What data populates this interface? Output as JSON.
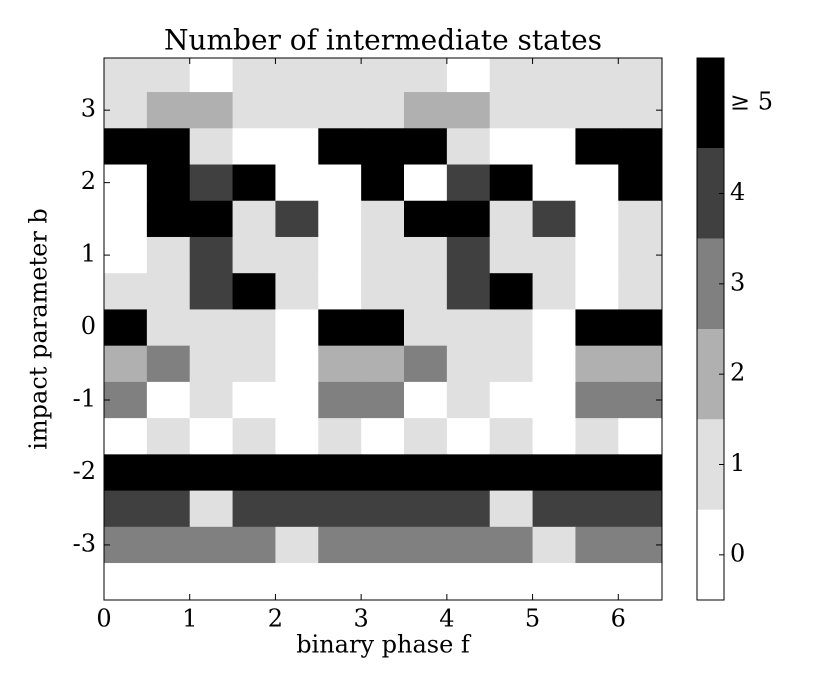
{
  "chart_data": {
    "type": "heatmap",
    "title": "Number of intermediate states",
    "xlabel": "binary phase f",
    "ylabel": "impact parameter b",
    "xlim": [
      0,
      6.51
    ],
    "xticks": [
      0,
      1,
      2,
      3,
      4,
      5,
      6
    ],
    "ylim": [
      -3.76,
      3.72
    ],
    "yticks": [
      -3,
      -2,
      -1,
      0,
      1,
      2,
      3
    ],
    "x": [
      0.25,
      0.75,
      1.25,
      1.75,
      2.25,
      2.75,
      3.25,
      3.75,
      4.25,
      4.75,
      5.25,
      5.75,
      6.25
    ],
    "y": [
      3.5,
      3.0,
      2.5,
      2.0,
      1.5,
      1.0,
      0.5,
      0.0,
      -0.5,
      -1.0,
      -1.5,
      -2.0,
      -2.5,
      -3.0,
      -3.5
    ],
    "z": [
      [
        1,
        1,
        0,
        1,
        1,
        1,
        1,
        1,
        0,
        1,
        1,
        1,
        1
      ],
      [
        1,
        2,
        2,
        1,
        1,
        1,
        1,
        2,
        2,
        1,
        1,
        1,
        1
      ],
      [
        5,
        5,
        1,
        0,
        0,
        5,
        5,
        5,
        1,
        0,
        0,
        5,
        5
      ],
      [
        0,
        5,
        4,
        5,
        0,
        0,
        5,
        0,
        4,
        5,
        0,
        0,
        5
      ],
      [
        0,
        5,
        5,
        1,
        4,
        0,
        1,
        5,
        5,
        1,
        4,
        0,
        1
      ],
      [
        0,
        1,
        4,
        1,
        1,
        0,
        1,
        1,
        4,
        1,
        1,
        0,
        1
      ],
      [
        1,
        1,
        4,
        5,
        1,
        0,
        1,
        1,
        4,
        5,
        1,
        0,
        1
      ],
      [
        5,
        1,
        1,
        1,
        0,
        5,
        5,
        1,
        1,
        1,
        0,
        5,
        5
      ],
      [
        2,
        3,
        1,
        1,
        0,
        2,
        2,
        3,
        1,
        1,
        0,
        2,
        2
      ],
      [
        3,
        0,
        1,
        0,
        0,
        3,
        3,
        0,
        1,
        0,
        0,
        3,
        3
      ],
      [
        0,
        1,
        0,
        1,
        0,
        1,
        0,
        1,
        0,
        1,
        0,
        1,
        0
      ],
      [
        5,
        5,
        5,
        5,
        5,
        5,
        5,
        5,
        5,
        5,
        5,
        5,
        5
      ],
      [
        4,
        4,
        1,
        4,
        4,
        4,
        4,
        4,
        4,
        1,
        4,
        4,
        4
      ],
      [
        3,
        3,
        3,
        3,
        1,
        3,
        3,
        3,
        3,
        3,
        1,
        3,
        3
      ],
      [
        0,
        0,
        0,
        0,
        0,
        0,
        0,
        0,
        0,
        0,
        0,
        0,
        0
      ]
    ],
    "colorbar": {
      "lim": [
        -0.5,
        5.5
      ],
      "ticks": [
        0,
        1,
        2,
        3,
        4,
        {
          "value": 5,
          "label": "≥ 5"
        }
      ],
      "colors": [
        "#ffffff",
        "#e0e0e0",
        "#b0b0b0",
        "#808080",
        "#404040",
        "#000000"
      ]
    }
  }
}
